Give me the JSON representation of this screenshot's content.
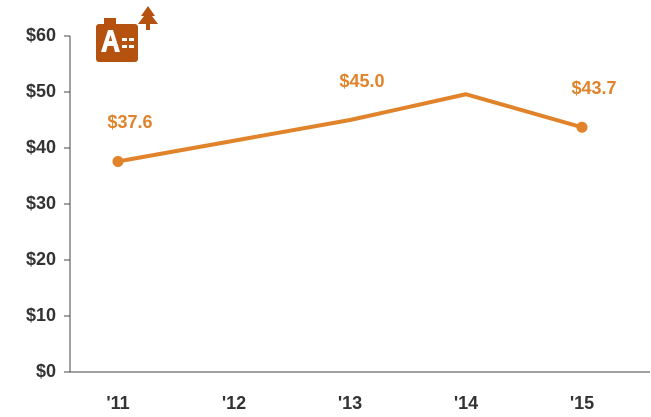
{
  "chart_data": {
    "type": "line",
    "categories": [
      "'11",
      "'12",
      "'13",
      "'14",
      "'15"
    ],
    "series": [
      {
        "color": "#e0832a",
        "values": [
          37.6,
          41.3,
          45.0,
          49.6,
          43.7
        ],
        "value_labels": [
          "$37.6",
          null,
          "$45.0",
          null,
          "$43.7"
        ]
      }
    ],
    "ylim": [
      0,
      60
    ],
    "yticks": [
      {
        "value": 0,
        "label": "$0"
      },
      {
        "value": 10,
        "label": "$10"
      },
      {
        "value": 20,
        "label": "$20"
      },
      {
        "value": 30,
        "label": "$30"
      },
      {
        "value": 40,
        "label": "$40"
      },
      {
        "value": 50,
        "label": "$50"
      },
      {
        "value": 60,
        "label": "$60"
      }
    ]
  }
}
